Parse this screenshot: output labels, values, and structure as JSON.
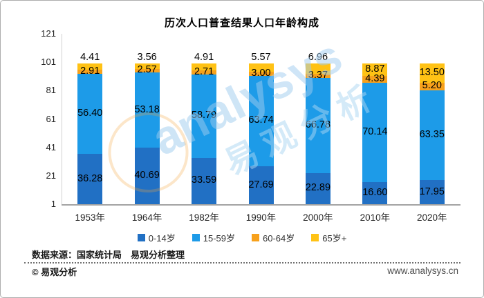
{
  "chart_data": {
    "type": "bar",
    "subtype": "stacked-column",
    "title": "历次人口普查结果人口年龄构成",
    "categories": [
      "1953年",
      "1964年",
      "1982年",
      "1990年",
      "2000年",
      "2010年",
      "2020年"
    ],
    "series": [
      {
        "name": "0-14岁",
        "color": "#2170c4",
        "values": [
          36.28,
          40.69,
          33.59,
          27.69,
          22.89,
          16.6,
          17.95
        ]
      },
      {
        "name": "15-59岁",
        "color": "#1d9be8",
        "values": [
          56.4,
          53.18,
          58.79,
          63.74,
          66.78,
          70.14,
          63.35
        ]
      },
      {
        "name": "60-64岁",
        "color": "#f7a11c",
        "values": [
          2.91,
          2.57,
          2.71,
          3.0,
          3.37,
          4.39,
          5.2
        ]
      },
      {
        "name": "65岁+",
        "color": "#ffc215",
        "values": [
          4.41,
          3.56,
          4.91,
          5.57,
          6.96,
          8.87,
          13.5
        ]
      }
    ],
    "y_axis": {
      "min": 1,
      "max": 121,
      "step": 20,
      "ticks": [
        1,
        21,
        41,
        61,
        81,
        101,
        121
      ]
    },
    "value_label_decimals": 2,
    "grid": false,
    "legend_position": "bottom"
  },
  "footer": {
    "source": "数据来源：国家统计局　易观分析整理",
    "copyright": "© 易观分析",
    "website": "www.analysys.cn"
  },
  "watermark": {
    "logo_text": "analysys",
    "cn_text": "易观分析",
    "text_color": "#9fccef",
    "circle_color": "#f2a33c"
  }
}
